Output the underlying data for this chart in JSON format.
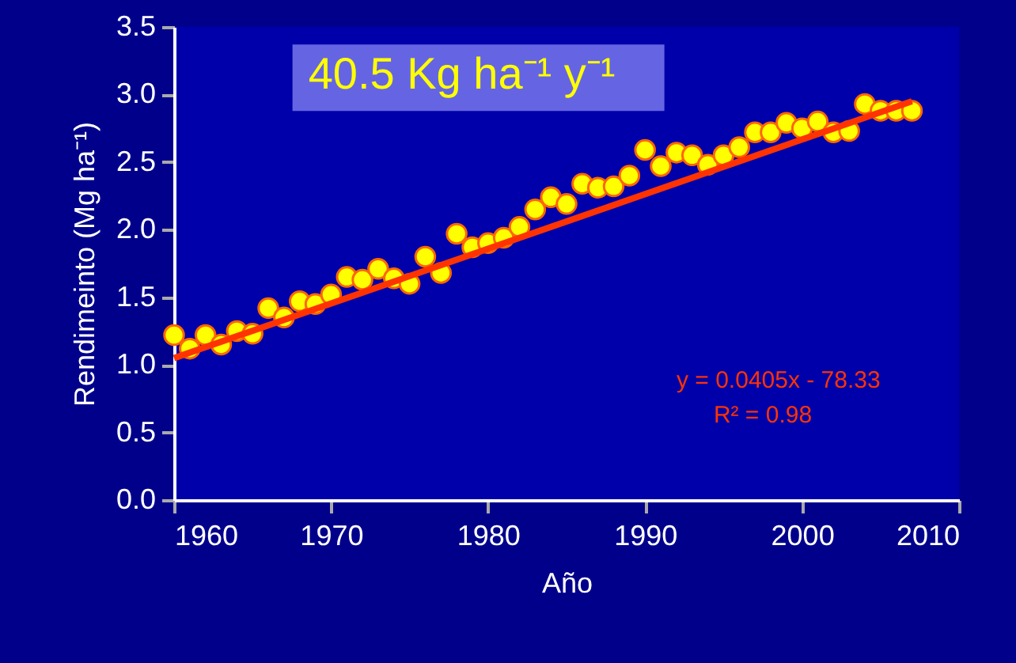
{
  "chart_data": {
    "type": "scatter",
    "xlabel": "Año",
    "ylabel": "Rendimeinto (Mg ha⁻¹)",
    "annotations": [
      "40.5 Kg ha⁻¹ y⁻¹",
      "y = 0.0405x - 78.33",
      "R² = 0.98"
    ],
    "xlim": [
      1960,
      2010
    ],
    "xticks": [
      1960,
      1970,
      1980,
      1990,
      2000,
      2010
    ],
    "ylim": [
      0,
      3.5
    ],
    "yticks": [
      {
        "value": 0,
        "label": "0.0"
      },
      0.5,
      {
        "value": 1,
        "label": "1.0"
      },
      1.5,
      {
        "value": 2,
        "label": "2.0"
      },
      2.5,
      {
        "value": 3,
        "label": "3.0"
      },
      3.5
    ],
    "grid": false,
    "series": [
      {
        "color": "#ffff00",
        "marker": "circle",
        "x": [
          1960,
          1961,
          1962,
          1963,
          1964,
          1965,
          1966,
          1967,
          1968,
          1969,
          1970,
          1971,
          1972,
          1973,
          1974,
          1975,
          1976,
          1977,
          1978,
          1979,
          1980,
          1981,
          1982,
          1983,
          1984,
          1985,
          1986,
          1987,
          1988,
          1989,
          1990,
          1991,
          1992,
          1993,
          1994,
          1995,
          1996,
          1997,
          1998,
          1999,
          2000,
          2001,
          2002,
          2003,
          2004,
          2005,
          2006,
          2007
        ],
        "values": [
          1.22,
          1.12,
          1.22,
          1.15,
          1.25,
          1.23,
          1.42,
          1.35,
          1.47,
          1.45,
          1.52,
          1.65,
          1.63,
          1.71,
          1.64,
          1.6,
          1.8,
          1.68,
          1.97,
          1.87,
          1.9,
          1.94,
          2.02,
          2.15,
          2.24,
          2.19,
          2.34,
          2.31,
          2.32,
          2.4,
          2.59,
          2.47,
          2.57,
          2.55,
          2.48,
          2.55,
          2.61,
          2.72,
          2.72,
          2.79,
          2.75,
          2.8,
          2.72,
          2.73,
          2.93,
          2.88,
          2.88,
          2.88
        ]
      },
      {
        "type": "line",
        "color": "#ff3300",
        "x": [
          1960,
          2007
        ],
        "values": [
          1.05,
          2.95
        ],
        "line_style": "solid",
        "marker": "none"
      }
    ]
  }
}
